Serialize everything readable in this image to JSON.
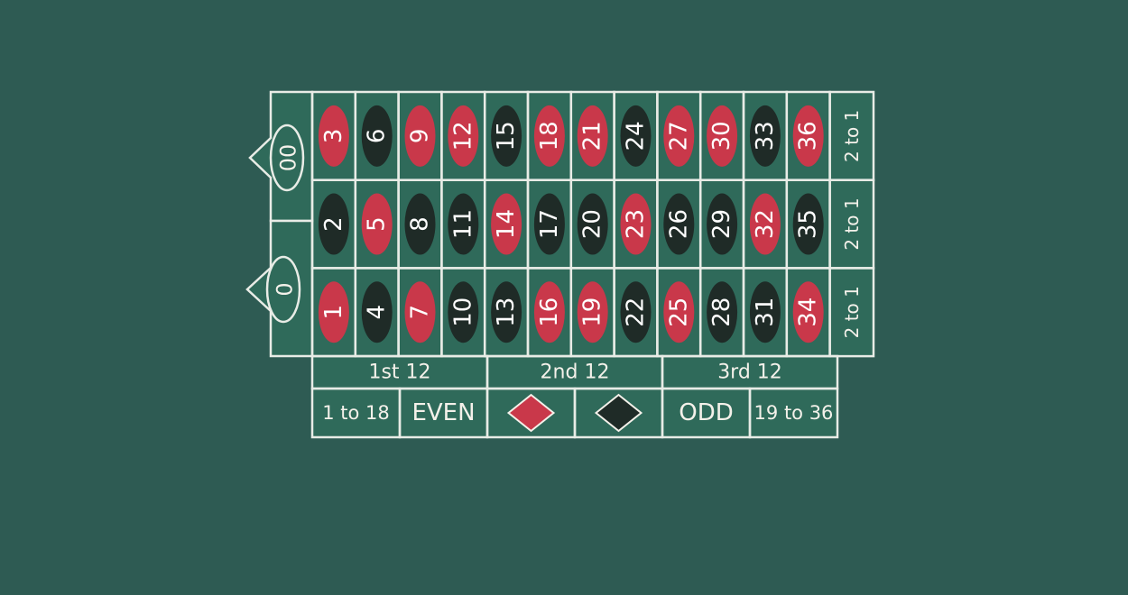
{
  "colors": {
    "background": "#2e5b53",
    "felt": "#2f6a5a",
    "red": "#c9384a",
    "black": "#1f2b27",
    "line": "#e8ece6"
  },
  "zeros": [
    {
      "label": "00"
    },
    {
      "label": "0"
    }
  ],
  "grid": {
    "rows": [
      [
        "3",
        "6",
        "9",
        "12",
        "15",
        "18",
        "21",
        "24",
        "27",
        "30",
        "33",
        "36"
      ],
      [
        "2",
        "5",
        "8",
        "11",
        "14",
        "17",
        "20",
        "23",
        "26",
        "29",
        "32",
        "35"
      ],
      [
        "1",
        "4",
        "7",
        "10",
        "13",
        "16",
        "19",
        "22",
        "25",
        "28",
        "31",
        "34"
      ]
    ],
    "colors": [
      [
        "red",
        "black",
        "red",
        "red",
        "black",
        "red",
        "red",
        "black",
        "red",
        "red",
        "black",
        "red"
      ],
      [
        "black",
        "red",
        "black",
        "black",
        "red",
        "black",
        "black",
        "red",
        "black",
        "black",
        "red",
        "black"
      ],
      [
        "red",
        "black",
        "red",
        "black",
        "black",
        "red",
        "red",
        "black",
        "red",
        "black",
        "black",
        "red"
      ]
    ]
  },
  "column_bets": [
    "2 to 1",
    "2 to 1",
    "2 to 1"
  ],
  "dozens": [
    "1st 12",
    "2nd 12",
    "3rd 12"
  ],
  "outside_bets": [
    {
      "label": "1 to 18",
      "kind": "text"
    },
    {
      "label": "EVEN",
      "kind": "text"
    },
    {
      "label": "",
      "kind": "red-diamond",
      "icon": "red-diamond-icon"
    },
    {
      "label": "",
      "kind": "black-diamond",
      "icon": "black-diamond-icon"
    },
    {
      "label": "ODD",
      "kind": "text"
    },
    {
      "label": "19 to 36",
      "kind": "text"
    }
  ]
}
